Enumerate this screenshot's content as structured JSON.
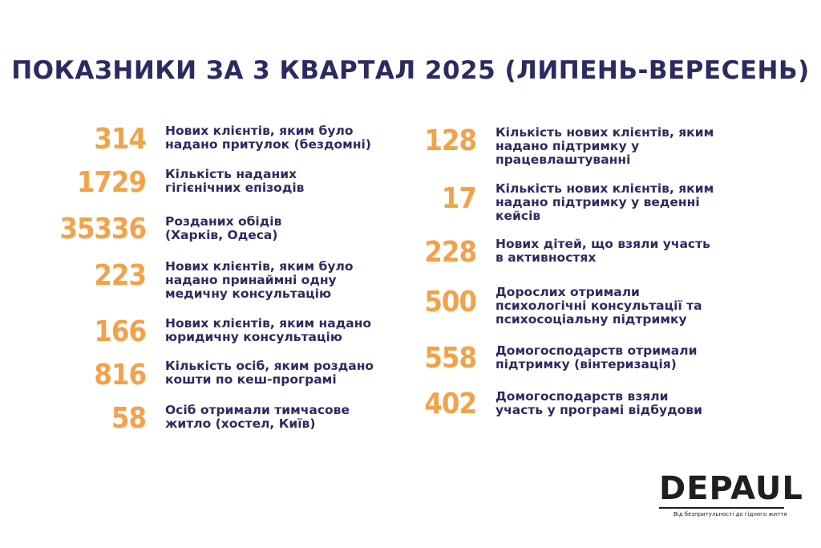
{
  "title": "ПОКАЗНИКИ ЗА 3 КВАРТАЛ 2025 (ЛИПЕНЬ-ВЕРЕСЕНЬ)",
  "left": [
    {
      "value": "314",
      "text": "Нових клієнтів, яким було\nнадано притулок (бездомні)"
    },
    {
      "value": "1729",
      "text": "Кількість наданих\nгігієнічних епізодів"
    },
    {
      "value": "35336",
      "text": "Розданих обідів\n(Харків, Одеса)"
    },
    {
      "value": "223",
      "text": "Нових клієнтів, яким було\nнадано принаймні одну\nмедичну консультацію"
    },
    {
      "value": "166",
      "text": "Нових клієнтів, яким надано\nюридичну консультацію"
    },
    {
      "value": "816",
      "text": "Кількість осіб, яким роздано\nкошти по кеш-програмі"
    },
    {
      "value": "58",
      "text": "Осіб отримали тимчасове\nжитло (хостел, Київ)"
    }
  ],
  "right": [
    {
      "value": "128",
      "text": "Кількість нових клієнтів, яким\nнадано підтримку у\nпрацевлаштуванні"
    },
    {
      "value": "17",
      "text": "Кількість нових клієнтів, яким\nнадано підтримку у веденні\nкейсів"
    },
    {
      "value": "228",
      "text": "Нових дітей, що взяли участь\nв активностях"
    },
    {
      "value": "500",
      "text": "Дорослих отримали\nпсихологічні консультації та\nпсихосоціальну підтримку"
    },
    {
      "value": "558",
      "text": "Домогосподарств отримали\nпідтримку (вінтеризація)"
    },
    {
      "value": "402",
      "text": "Домогосподарств взяли\nучасть у програмі відбудови"
    }
  ],
  "logo": {
    "name": "DEPAUL",
    "tagline": "Від безпритульності до гідного життя"
  }
}
